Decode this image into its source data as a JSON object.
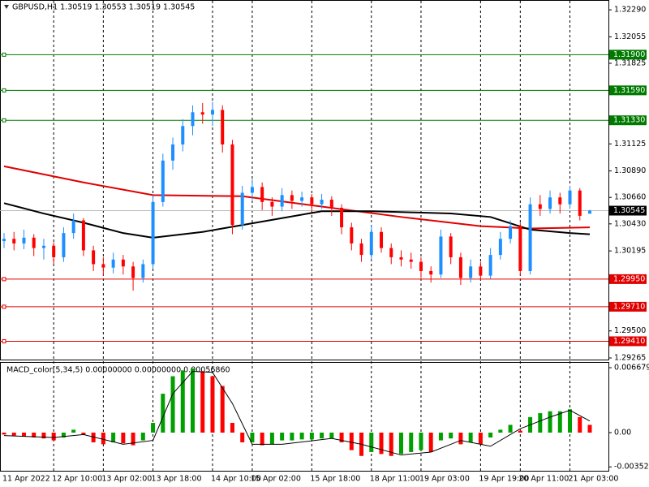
{
  "chart_data": [
    {
      "type": "candlestick",
      "title": "GBPUSD,H1  1.30519 1.30553 1.30519 1.30545",
      "categories": [
        "11 Apr 2022",
        null,
        null,
        null,
        null,
        "12 Apr 10:00",
        null,
        null,
        null,
        null,
        "13 Apr 02:00",
        null,
        null,
        null,
        null,
        "13 Apr 18:00",
        null,
        null,
        null,
        null,
        null,
        "14 Apr 10:00",
        null,
        null,
        null,
        "15 Apr 02:00",
        null,
        null,
        null,
        null,
        null,
        "15 Apr 18:00",
        null,
        null,
        null,
        null,
        null,
        "18 Apr 11:00",
        null,
        null,
        null,
        null,
        "19 Apr 03:00",
        null,
        null,
        null,
        null,
        null,
        "19 Apr 19:00",
        null,
        null,
        null,
        "20 Apr 11:00",
        null,
        null,
        null,
        null,
        "21 Apr 03:00",
        null,
        null
      ],
      "open": [
        1.3028,
        1.303,
        1.3026,
        1.3031,
        1.3022,
        1.3024,
        1.3014,
        1.3035,
        1.3046,
        1.302,
        1.3008,
        1.3005,
        1.3012,
        1.3006,
        1.2996,
        1.3008,
        1.3062,
        1.3098,
        1.3112,
        1.3128,
        1.314,
        1.3138,
        1.3142,
        1.3112,
        1.3042,
        1.307,
        1.3075,
        1.3062,
        1.3058,
        1.3068,
        1.3063,
        1.3066,
        1.306,
        1.3064,
        1.3057,
        1.304,
        1.3026,
        1.3016,
        1.3036,
        1.3022,
        1.3014,
        1.3012,
        1.301,
        1.3002,
        1.2999,
        1.3032,
        1.3014,
        1.2996,
        1.3006,
        1.2998,
        1.3016,
        1.303,
        1.3041,
        1.3002,
        1.306,
        1.3056,
        1.3066,
        1.306,
        1.3072,
        1.30519
      ],
      "high": [
        1.3035,
        1.3036,
        1.3038,
        1.3034,
        1.303,
        1.3027,
        1.304,
        1.3052,
        1.3048,
        1.3024,
        1.3014,
        1.3018,
        1.3016,
        1.301,
        1.3012,
        1.3068,
        1.3104,
        1.3118,
        1.3134,
        1.3146,
        1.3148,
        1.3149,
        1.3146,
        1.3116,
        1.3076,
        1.3082,
        1.3079,
        1.3066,
        1.3074,
        1.3072,
        1.3071,
        1.3069,
        1.3069,
        1.3067,
        1.306,
        1.3044,
        1.303,
        1.3042,
        1.304,
        1.3026,
        1.302,
        1.3018,
        1.3014,
        1.3006,
        1.3038,
        1.3035,
        1.3018,
        1.3012,
        1.301,
        1.3022,
        1.3036,
        1.3046,
        1.3044,
        1.3066,
        1.3068,
        1.3072,
        1.307,
        1.3076,
        1.3074,
        1.30553
      ],
      "low": [
        1.3022,
        1.302,
        1.3021,
        1.3015,
        1.3012,
        1.3008,
        1.301,
        1.303,
        1.3015,
        1.3002,
        1.2998,
        1.3,
        1.2999,
        1.2985,
        1.2992,
        1.3004,
        1.3058,
        1.309,
        1.3106,
        1.312,
        1.313,
        1.3128,
        1.3105,
        1.3034,
        1.3038,
        1.3064,
        1.3055,
        1.305,
        1.3054,
        1.3056,
        1.3058,
        1.3054,
        1.3056,
        1.305,
        1.3034,
        1.302,
        1.301,
        1.3012,
        1.3018,
        1.3008,
        1.3006,
        1.3004,
        1.2996,
        1.2992,
        1.2996,
        1.3008,
        1.299,
        1.2992,
        1.2994,
        1.2995,
        1.3012,
        1.3026,
        1.2998,
        1.2999,
        1.305,
        1.3052,
        1.3052,
        1.3056,
        1.3046,
        1.30519
      ],
      "close": [
        1.303,
        1.3026,
        1.3031,
        1.3022,
        1.3024,
        1.3014,
        1.3035,
        1.3046,
        1.302,
        1.3008,
        1.3005,
        1.3012,
        1.3006,
        1.2996,
        1.3008,
        1.3062,
        1.3098,
        1.3112,
        1.3128,
        1.314,
        1.3138,
        1.3142,
        1.3112,
        1.3042,
        1.307,
        1.3075,
        1.3062,
        1.3058,
        1.3068,
        1.3063,
        1.3066,
        1.306,
        1.3064,
        1.3057,
        1.304,
        1.3026,
        1.3016,
        1.3036,
        1.3022,
        1.3014,
        1.3012,
        1.301,
        1.3002,
        1.2999,
        1.3032,
        1.3014,
        1.2996,
        1.3006,
        1.2998,
        1.3016,
        1.303,
        1.3041,
        1.3002,
        1.306,
        1.3056,
        1.3066,
        1.306,
        1.3072,
        1.305,
        1.30545
      ],
      "up_color": "#1e8fff",
      "down_color": "#ff0000",
      "series": [
        {
          "color": "#e00000",
          "x": [
            0,
            8,
            15,
            24,
            32,
            40,
            48,
            53,
            59
          ],
          "values": [
            1.3093,
            1.3079,
            1.3068,
            1.3067,
            1.3058,
            1.3049,
            1.3041,
            1.3039,
            1.304
          ]
        },
        {
          "color": "#000000",
          "x": [
            0,
            4,
            8,
            12,
            15,
            20,
            24,
            28,
            32,
            37,
            41,
            45,
            49,
            53,
            57,
            59
          ],
          "values": [
            1.3061,
            1.3052,
            1.3044,
            1.3035,
            1.3031,
            1.3036,
            1.3042,
            1.3048,
            1.3054,
            1.3054,
            1.3053,
            1.3052,
            1.3049,
            1.3038,
            1.3035,
            1.3034
          ]
        }
      ],
      "levels": [
        {
          "value": 1.319,
          "label": "1.31900",
          "color": "#007a00"
        },
        {
          "value": 1.3159,
          "label": "1.31590",
          "color": "#007a00"
        },
        {
          "value": 1.3133,
          "label": "1.31330",
          "color": "#007a00"
        },
        {
          "value": 1.2995,
          "label": "1.29950",
          "color": "#e00000"
        },
        {
          "value": 1.2971,
          "label": "1.29710",
          "color": "#e00000"
        },
        {
          "value": 1.2941,
          "label": "1.29410",
          "color": "#e00000"
        }
      ],
      "current": {
        "value": 1.30545,
        "label": "1.30545"
      },
      "ylim": [
        1.29251,
        1.32361
      ],
      "yticks": [
        {
          "value": 1.3229,
          "label": "1.32290"
        },
        {
          "value": 1.32055,
          "label": "1.32055"
        },
        {
          "value": 1.31825,
          "label": "1.31825"
        },
        {
          "value": 1.31125,
          "label": "1.31125"
        },
        {
          "value": 1.3089,
          "label": "1.30890"
        },
        {
          "value": 1.3066,
          "label": "1.30660"
        },
        {
          "value": 1.3043,
          "label": "1.30430"
        },
        {
          "value": 1.30195,
          "label": "1.30195"
        },
        {
          "value": 1.295,
          "label": "1.29500"
        },
        {
          "value": 1.29265,
          "label": "1.29265"
        }
      ]
    },
    {
      "type": "macd",
      "title": "MACD_color(5,34,5) 0.00000000 0.00000000 0.00056860",
      "values": [
        -0.0002,
        -0.0003,
        -0.0004,
        -0.0005,
        -0.0006,
        -0.0008,
        -0.0005,
        0.0003,
        -0.0002,
        -0.001,
        -0.0012,
        -0.001,
        -0.0011,
        -0.0013,
        -0.0008,
        0.001,
        0.004,
        0.0058,
        0.0064,
        0.0066,
        0.0063,
        0.0058,
        0.0048,
        0.001,
        -0.001,
        -0.001,
        -0.0013,
        -0.0012,
        -0.0008,
        -0.0008,
        -0.0007,
        -0.0007,
        -0.0006,
        -0.0006,
        -0.001,
        -0.0018,
        -0.0024,
        -0.002,
        -0.0022,
        -0.0024,
        -0.0022,
        -0.002,
        -0.0018,
        -0.002,
        -0.0008,
        -0.0006,
        -0.0012,
        -0.001,
        -0.0012,
        -0.0005,
        0.0003,
        0.0008,
        0.0002,
        0.0016,
        0.002,
        0.0022,
        0.0022,
        0.0024,
        0.0016,
        0.0008
      ],
      "up_color": "#00a000",
      "down_color": "#ff0000",
      "signal": {
        "color": "#000000",
        "x": [
          0,
          5,
          8,
          12,
          15,
          17,
          19,
          21,
          23,
          25,
          28,
          33,
          36,
          40,
          43,
          46,
          49,
          52,
          55,
          57,
          59
        ],
        "values": [
          -0.0003,
          -0.0005,
          -0.0002,
          -0.0012,
          -0.0008,
          0.004,
          0.0063,
          0.0062,
          0.003,
          -0.0012,
          -0.0012,
          -0.0006,
          -0.0012,
          -0.0023,
          -0.002,
          -0.0008,
          -0.0014,
          0.0004,
          0.0016,
          0.0023,
          0.0012
        ]
      },
      "ylim": [
        -0.003924,
        0.0071807
      ],
      "yticks": [
        0.0066797,
        {
          "value": 0,
          "label": "0.00"
        },
        -0.003525
      ]
    }
  ]
}
